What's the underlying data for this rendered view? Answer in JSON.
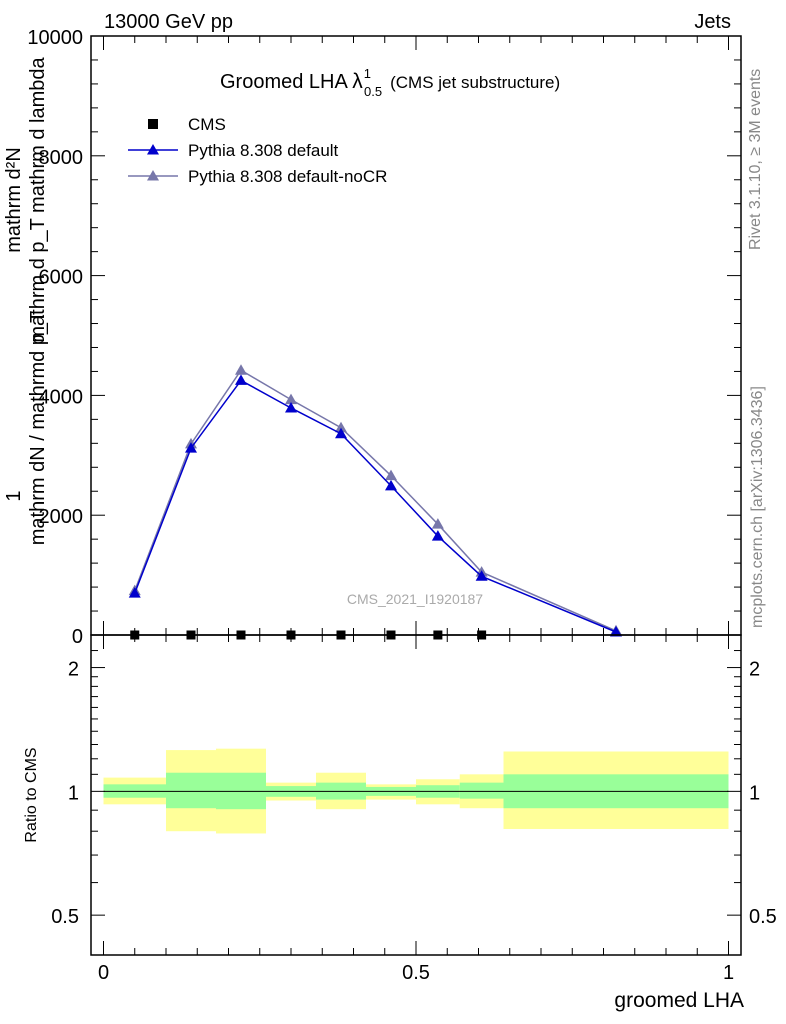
{
  "header": {
    "left": "13000 GeV pp",
    "right": "Jets"
  },
  "side_labels": {
    "rivet": "Rivet 3.1.10, ≥ 3M events",
    "mcplots": "mcplots.cern.ch [arXiv:1306.3436]"
  },
  "main_plot": {
    "title_main": "Groomed LHA ",
    "title_lambda": "λ",
    "title_sup": "1",
    "title_sub": "0.5",
    "title_note": "(CMS jet substructure)",
    "ylabel_numerator": "mathrm d²N",
    "ylabel_denominator": "mathrm d p_T mathrm d lambda",
    "ylabel_prefix_num": "1",
    "ylabel_prefix_den": "mathrm dN / mathrmd p_T",
    "ylabel_garbled_mid": "mathrm d p_T mathrm d lambda",
    "watermark": "CMS_2021_I1920187",
    "ytick_labels": [
      "0",
      "2000",
      "4000",
      "6000",
      "8000",
      "10000"
    ]
  },
  "ratio_plot": {
    "ylabel": "Ratio to CMS",
    "ytick_labels": [
      "0.5",
      "1",
      "2"
    ],
    "xtick_labels": [
      "0",
      "0.5",
      "1"
    ],
    "xlabel": "groomed LHA"
  },
  "chart_data": {
    "type": "line",
    "title": "Groomed LHA λ^1_0.5 (CMS jet substructure)",
    "xlabel": "groomed LHA",
    "ylabel": "1/(mathrm dN / mathrmd p_T) mathrm d²N/(mathrm d p_T mathrm d lambda)",
    "xlim": [
      -0.02,
      1.02
    ],
    "ylim": [
      0,
      10000
    ],
    "legend_position": "top-left",
    "colors": {
      "cms": "#000000",
      "default": "#0000cc",
      "noCR": "#7777aa",
      "band_inner": "#99ff99",
      "band_outer": "#ffff99"
    },
    "x": [
      0.05,
      0.14,
      0.22,
      0.3,
      0.38,
      0.46,
      0.535,
      0.605,
      0.82
    ],
    "bin_edges": [
      0.0,
      0.1,
      0.18,
      0.26,
      0.34,
      0.42,
      0.5,
      0.57,
      0.64,
      1.0
    ],
    "series": [
      {
        "name": "CMS",
        "marker": "square",
        "x": [
          0.05,
          0.14,
          0.22,
          0.3,
          0.38,
          0.46,
          0.535,
          0.605
        ],
        "values": [
          0,
          0,
          0,
          0,
          0,
          0,
          0,
          0
        ]
      },
      {
        "name": "Pythia 8.308 default",
        "marker": "triangle",
        "values": [
          700,
          3120,
          4250,
          3790,
          3360,
          2490,
          1650,
          980,
          50
        ]
      },
      {
        "name": "Pythia 8.308 default-noCR",
        "marker": "triangle",
        "values": [
          740,
          3190,
          4420,
          3930,
          3460,
          2660,
          1850,
          1050,
          70
        ]
      }
    ],
    "ratio": {
      "ylabel": "Ratio to CMS",
      "ylim": [
        0.4,
        2.4
      ],
      "log_scale": true,
      "yticks": [
        0.5,
        1,
        2
      ],
      "xticks": [
        0,
        0.5,
        1
      ],
      "bands": [
        {
          "x0": 0.0,
          "x1": 0.1,
          "inner": [
            0.965,
            1.04
          ],
          "outer": [
            0.93,
            1.08
          ]
        },
        {
          "x0": 0.1,
          "x1": 0.18,
          "inner": [
            0.91,
            1.11
          ],
          "outer": [
            0.8,
            1.26
          ]
        },
        {
          "x0": 0.18,
          "x1": 0.26,
          "inner": [
            0.905,
            1.11
          ],
          "outer": [
            0.79,
            1.27
          ]
        },
        {
          "x0": 0.26,
          "x1": 0.34,
          "inner": [
            0.97,
            1.03
          ],
          "outer": [
            0.95,
            1.05
          ]
        },
        {
          "x0": 0.34,
          "x1": 0.42,
          "inner": [
            0.955,
            1.05
          ],
          "outer": [
            0.905,
            1.11
          ]
        },
        {
          "x0": 0.42,
          "x1": 0.5,
          "inner": [
            0.975,
            1.025
          ],
          "outer": [
            0.955,
            1.04
          ]
        },
        {
          "x0": 0.5,
          "x1": 0.57,
          "inner": [
            0.965,
            1.035
          ],
          "outer": [
            0.93,
            1.07
          ]
        },
        {
          "x0": 0.57,
          "x1": 0.64,
          "inner": [
            0.96,
            1.05
          ],
          "outer": [
            0.91,
            1.1
          ]
        },
        {
          "x0": 0.64,
          "x1": 1.0,
          "inner": [
            0.91,
            1.1
          ],
          "outer": [
            0.81,
            1.25
          ]
        }
      ]
    }
  }
}
